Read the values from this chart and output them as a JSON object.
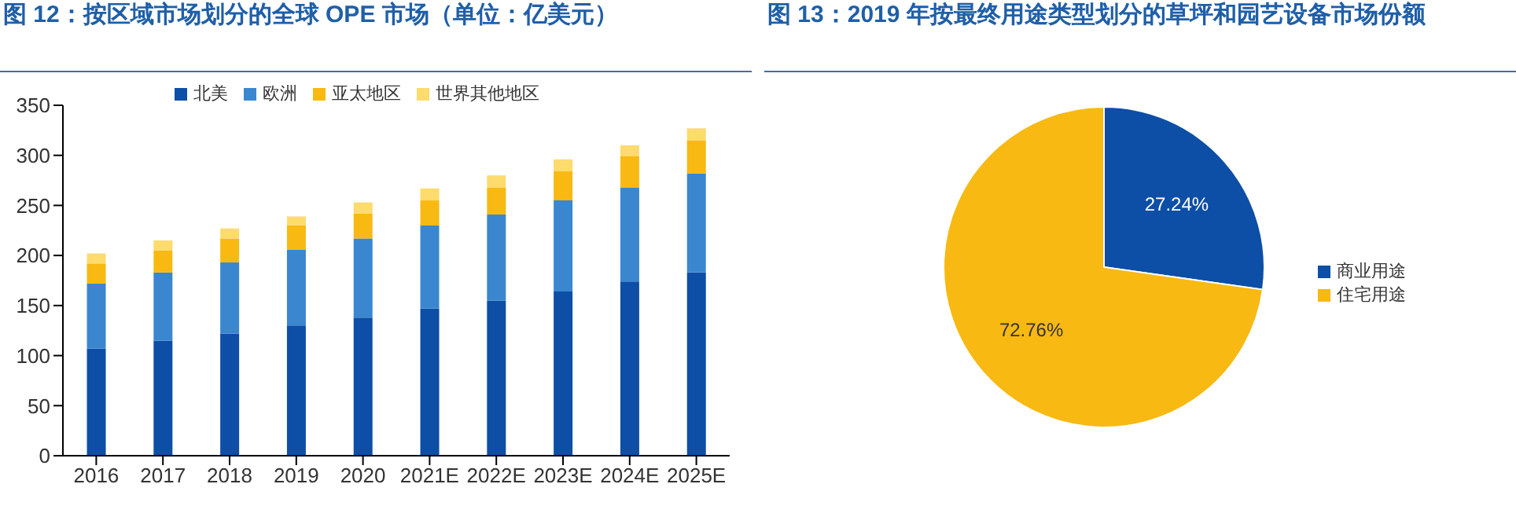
{
  "chart_data": [
    {
      "type": "bar",
      "title": "图 12：按区域市场划分的全球 OPE 市场（单位：亿美元）",
      "categories": [
        "2016",
        "2017",
        "2018",
        "2019",
        "2020",
        "2021E",
        "2022E",
        "2023E",
        "2024E",
        "2025E"
      ],
      "stacked": true,
      "ylim": [
        0,
        350
      ],
      "yticks": [
        0,
        50,
        100,
        150,
        200,
        250,
        300,
        350
      ],
      "legend": "top",
      "series": [
        {
          "name": "北美",
          "color": "#0d4ea6",
          "values": [
            107,
            115,
            122,
            130,
            138,
            147,
            155,
            164,
            174,
            183
          ]
        },
        {
          "name": "欧洲",
          "color": "#3a87d0",
          "values": [
            65,
            68,
            71,
            76,
            79,
            83,
            86,
            91,
            94,
            99
          ]
        },
        {
          "name": "亚太地区",
          "color": "#f8b912",
          "values": [
            20,
            22,
            24,
            24,
            25,
            25,
            27,
            29,
            31,
            33
          ]
        },
        {
          "name": "世界其他地区",
          "color": "#fddb6c",
          "values": [
            10,
            10,
            10,
            9,
            11,
            12,
            12,
            12,
            11,
            12
          ]
        }
      ]
    },
    {
      "type": "pie",
      "title": "图 13：2019 年按最终用途类型划分的草坪和园艺设备市场份额",
      "categories": [
        "商业用途",
        "住宅用途"
      ],
      "values": [
        27.24,
        72.76
      ],
      "colors": [
        "#0d4ea6",
        "#f8b912"
      ],
      "value_labels": [
        "27.24%",
        "72.76%"
      ],
      "legend": "right"
    }
  ]
}
